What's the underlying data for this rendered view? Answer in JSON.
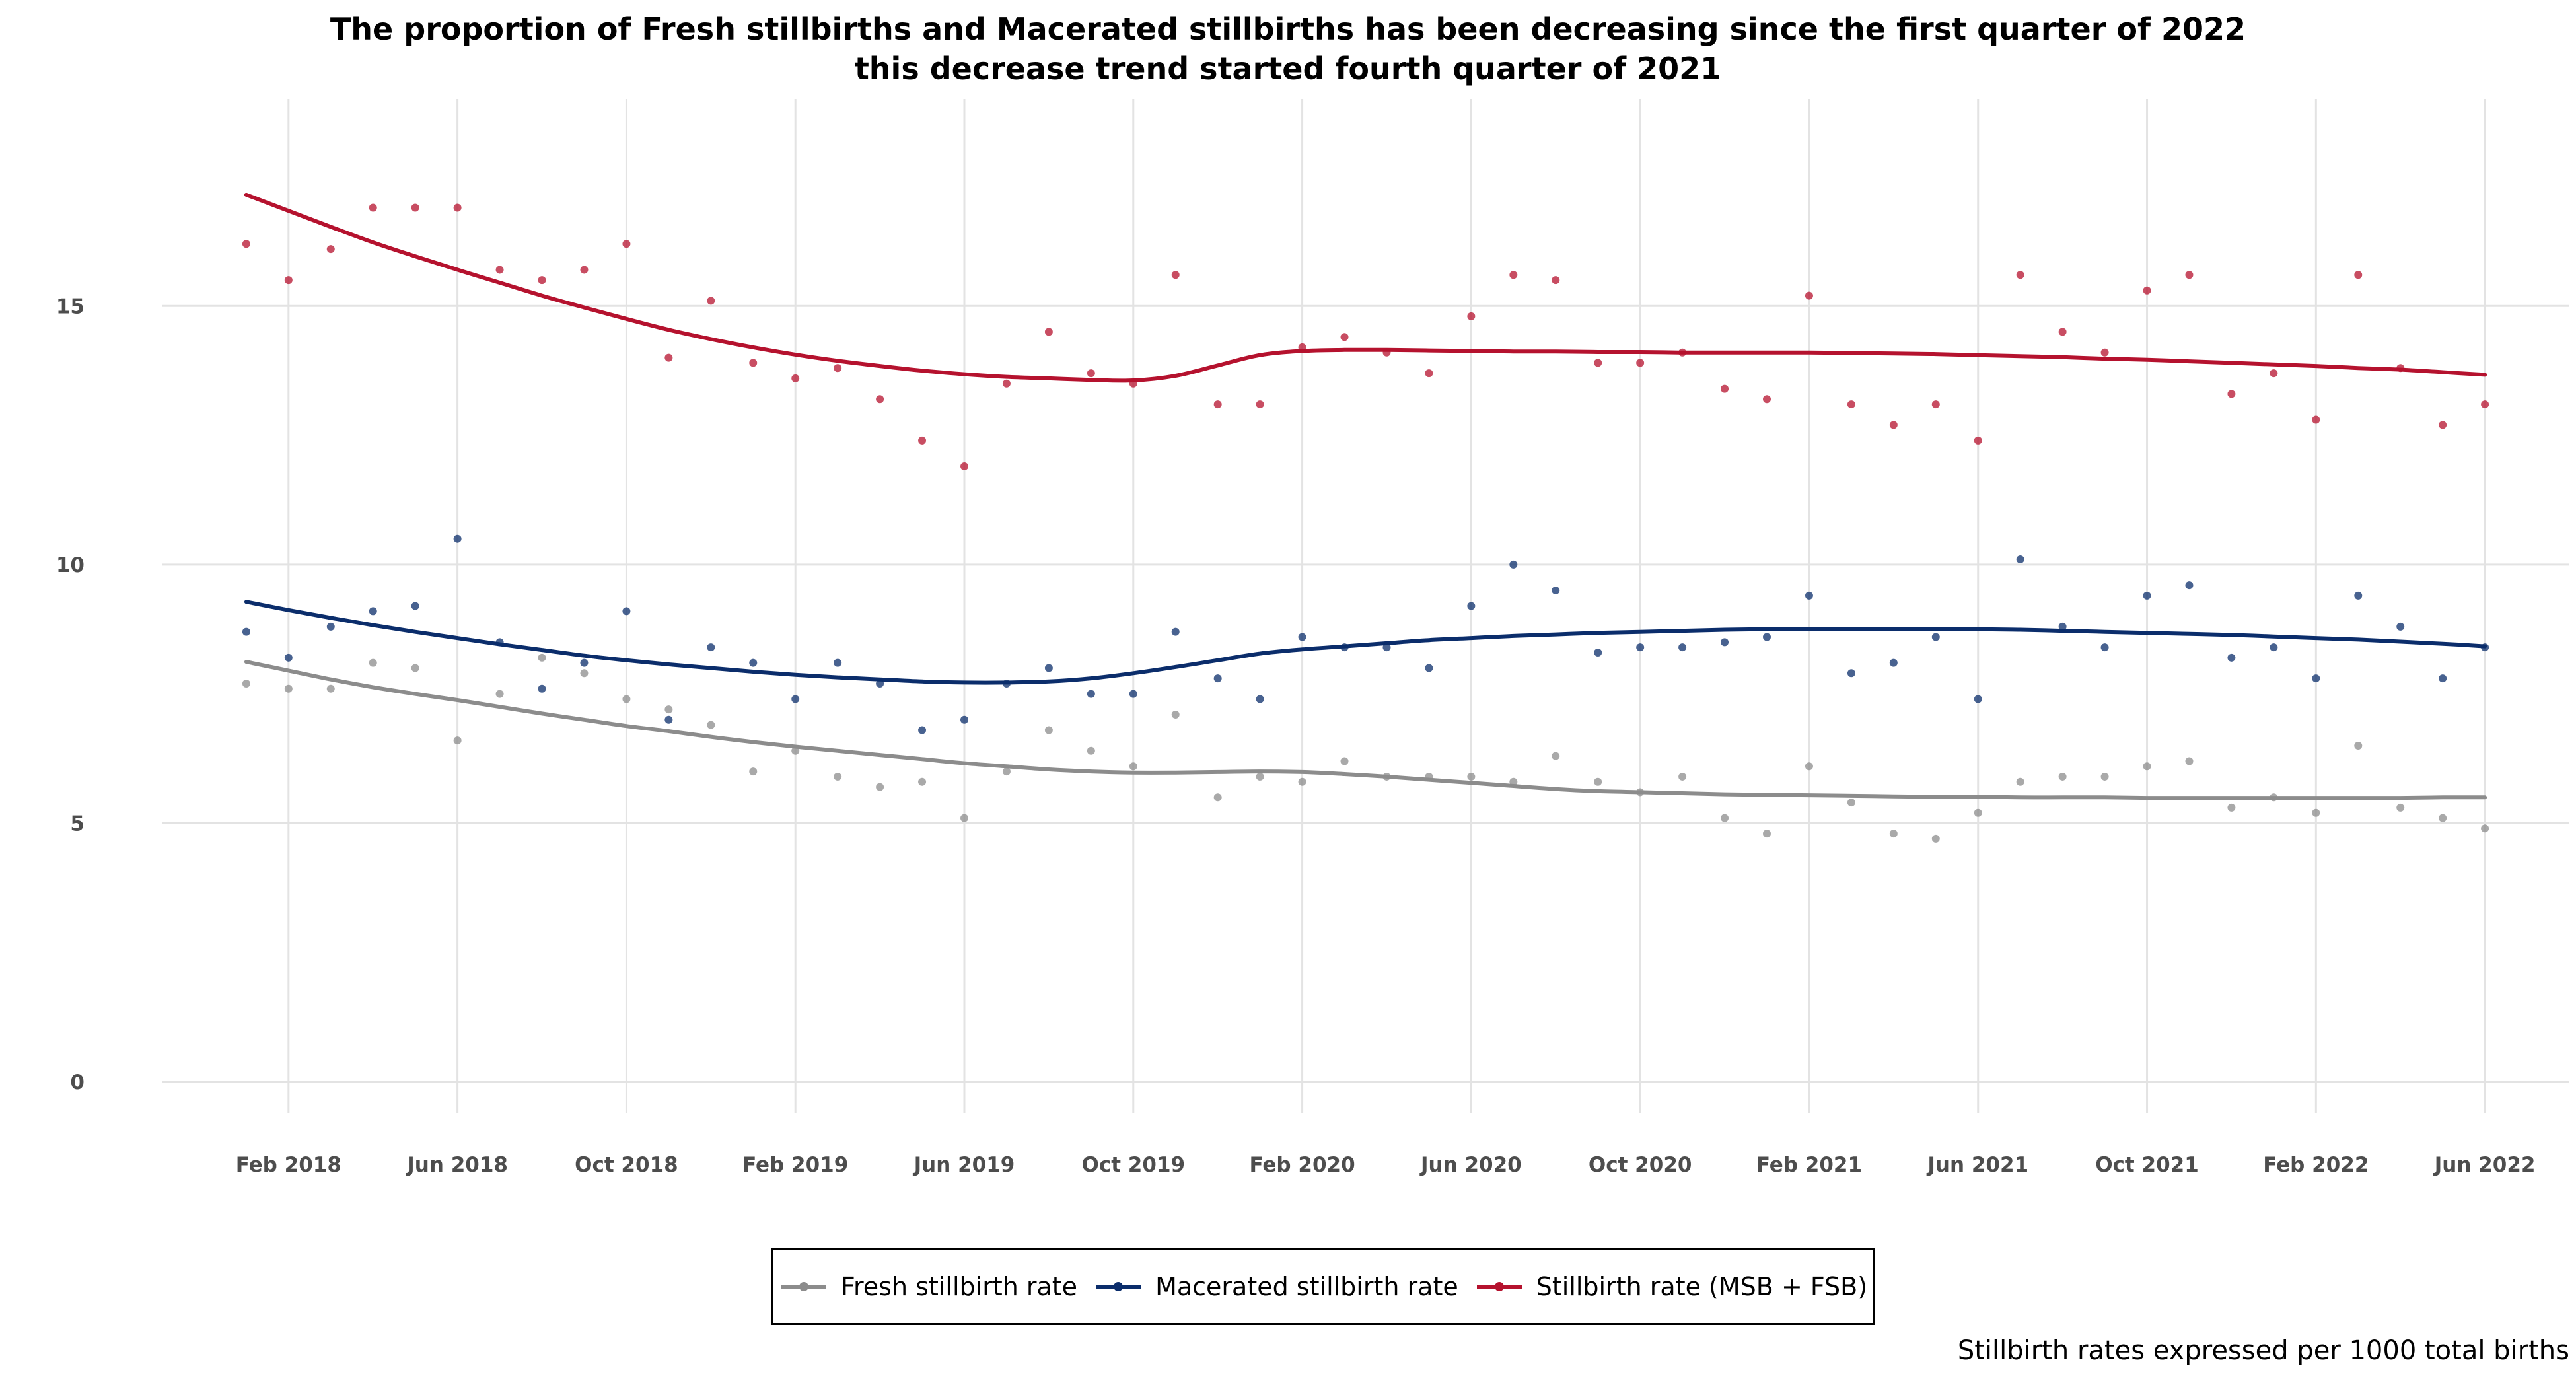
{
  "chart_data": {
    "type": "scatter",
    "title_lines": [
      "The proportion of Fresh stillbirths and Macerated stillbirths has been decreasing since the first quarter of 2022",
      "this decrease trend started fourth quarter of 2021"
    ],
    "xlabel": "",
    "ylabel": "",
    "caption": "Stillbirth rates expressed per 1000 total births",
    "x_ticks": [
      "Feb 2018",
      "Jun 2018",
      "Oct 2018",
      "Feb 2019",
      "Jun 2019",
      "Oct 2019",
      "Feb 2020",
      "Jun 2020",
      "Oct 2020",
      "Feb 2021",
      "Jun 2021",
      "Oct 2021",
      "Feb 2022",
      "Jun 2022"
    ],
    "y_ticks": [
      0,
      5,
      10,
      15
    ],
    "ylim": [
      -0.6,
      19
    ],
    "xlim": [
      "2017-11",
      "2022-08"
    ],
    "x": [
      "2018-01",
      "2018-02",
      "2018-03",
      "2018-04",
      "2018-05",
      "2018-06",
      "2018-07",
      "2018-08",
      "2018-09",
      "2018-10",
      "2018-11",
      "2018-12",
      "2019-01",
      "2019-02",
      "2019-03",
      "2019-04",
      "2019-05",
      "2019-06",
      "2019-07",
      "2019-08",
      "2019-09",
      "2019-10",
      "2019-11",
      "2019-12",
      "2020-01",
      "2020-02",
      "2020-03",
      "2020-04",
      "2020-05",
      "2020-06",
      "2020-07",
      "2020-08",
      "2020-09",
      "2020-10",
      "2020-11",
      "2020-12",
      "2021-01",
      "2021-02",
      "2021-03",
      "2021-04",
      "2021-05",
      "2021-06",
      "2021-07",
      "2021-08",
      "2021-09",
      "2021-10",
      "2021-11",
      "2021-12",
      "2022-01",
      "2022-02",
      "2022-03",
      "2022-04",
      "2022-05",
      "2022-06"
    ],
    "grid": true,
    "legend_position": "bottom",
    "series": [
      {
        "name": "Fresh stillbirth rate",
        "color": "#8c8c8c",
        "values": [
          7.7,
          7.6,
          7.6,
          8.1,
          8.0,
          6.6,
          7.5,
          8.2,
          7.9,
          7.4,
          7.2,
          6.9,
          6.0,
          6.4,
          5.9,
          5.7,
          5.8,
          5.1,
          6.0,
          6.8,
          6.4,
          6.1,
          7.1,
          5.5,
          5.9,
          5.8,
          6.2,
          5.9,
          5.9,
          5.9,
          5.8,
          6.3,
          5.8,
          5.6,
          5.9,
          5.1,
          4.8,
          6.1,
          5.4,
          4.8,
          4.7,
          5.2,
          5.8,
          5.9,
          5.9,
          6.1,
          6.2,
          5.3,
          5.5,
          5.2,
          6.5,
          5.3,
          5.1,
          4.9
        ],
        "trend": [
          8.12,
          7.95,
          7.78,
          7.63,
          7.5,
          7.38,
          7.25,
          7.12,
          7.0,
          6.88,
          6.78,
          6.67,
          6.57,
          6.48,
          6.4,
          6.32,
          6.24,
          6.16,
          6.1,
          6.04,
          6.0,
          5.98,
          5.98,
          5.99,
          6.0,
          5.99,
          5.95,
          5.9,
          5.84,
          5.78,
          5.72,
          5.66,
          5.62,
          5.6,
          5.58,
          5.56,
          5.55,
          5.54,
          5.53,
          5.52,
          5.51,
          5.51,
          5.5,
          5.5,
          5.5,
          5.49,
          5.49,
          5.49,
          5.49,
          5.49,
          5.49,
          5.49,
          5.5,
          5.5
        ]
      },
      {
        "name": "Macerated stillbirth rate",
        "color": "#0b2d6b",
        "values": [
          8.7,
          8.2,
          8.8,
          9.1,
          9.2,
          10.5,
          8.5,
          7.6,
          8.1,
          9.1,
          7.0,
          8.4,
          8.1,
          7.4,
          8.1,
          7.7,
          6.8,
          7.0,
          7.7,
          8.0,
          7.5,
          7.5,
          8.7,
          7.8,
          7.4,
          8.6,
          8.4,
          8.4,
          8.0,
          9.2,
          10.0,
          9.5,
          8.3,
          8.4,
          8.4,
          8.5,
          8.6,
          9.4,
          7.9,
          8.1,
          8.6,
          7.4,
          10.1,
          8.8,
          8.4,
          9.4,
          9.6,
          8.2,
          8.4,
          7.8,
          9.4,
          8.8,
          7.8,
          8.4
        ],
        "trend": [
          9.28,
          9.12,
          8.97,
          8.83,
          8.7,
          8.58,
          8.46,
          8.35,
          8.24,
          8.15,
          8.07,
          8.0,
          7.93,
          7.87,
          7.82,
          7.78,
          7.74,
          7.72,
          7.72,
          7.74,
          7.8,
          7.9,
          8.02,
          8.15,
          8.28,
          8.36,
          8.42,
          8.48,
          8.54,
          8.58,
          8.62,
          8.65,
          8.68,
          8.7,
          8.72,
          8.74,
          8.75,
          8.76,
          8.76,
          8.76,
          8.76,
          8.75,
          8.74,
          8.72,
          8.7,
          8.68,
          8.66,
          8.64,
          8.61,
          8.58,
          8.55,
          8.51,
          8.47,
          8.42
        ]
      },
      {
        "name": "Stillbirth rate (MSB + FSB)",
        "color": "#b5122e",
        "values": [
          16.2,
          15.5,
          16.1,
          16.9,
          16.9,
          16.9,
          15.7,
          15.5,
          15.7,
          16.2,
          14.0,
          15.1,
          13.9,
          13.6,
          13.8,
          13.2,
          12.4,
          11.9,
          13.5,
          14.5,
          13.7,
          13.5,
          15.6,
          13.1,
          13.1,
          14.2,
          14.4,
          14.1,
          13.7,
          14.8,
          15.6,
          15.5,
          13.9,
          13.9,
          14.1,
          13.4,
          13.2,
          15.2,
          13.1,
          12.7,
          13.1,
          12.4,
          15.6,
          14.5,
          14.1,
          15.3,
          15.6,
          13.3,
          13.7,
          12.8,
          15.6,
          13.8,
          12.7,
          13.1
        ],
        "trend": [
          17.15,
          16.84,
          16.53,
          16.23,
          15.96,
          15.7,
          15.45,
          15.2,
          14.97,
          14.75,
          14.54,
          14.36,
          14.2,
          14.06,
          13.94,
          13.84,
          13.75,
          13.68,
          13.63,
          13.6,
          13.57,
          13.56,
          13.65,
          13.85,
          14.05,
          14.13,
          14.15,
          14.15,
          14.14,
          14.13,
          14.12,
          14.12,
          14.11,
          14.11,
          14.1,
          14.1,
          14.1,
          14.1,
          14.09,
          14.08,
          14.07,
          14.05,
          14.03,
          14.01,
          13.98,
          13.96,
          13.93,
          13.9,
          13.87,
          13.84,
          13.8,
          13.77,
          13.72,
          13.67
        ]
      }
    ]
  }
}
